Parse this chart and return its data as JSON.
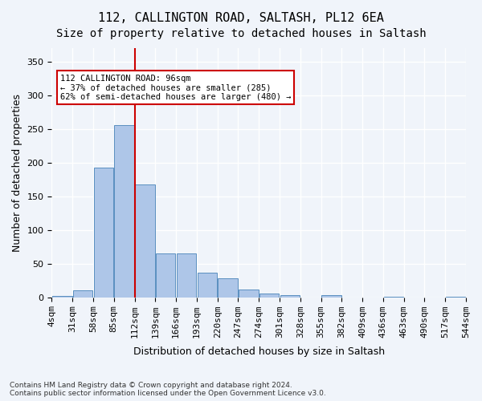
{
  "title1": "112, CALLINGTON ROAD, SALTASH, PL12 6EA",
  "title2": "Size of property relative to detached houses in Saltash",
  "xlabel": "Distribution of detached houses by size in Saltash",
  "ylabel": "Number of detached properties",
  "footnote": "Contains HM Land Registry data © Crown copyright and database right 2024.\nContains public sector information licensed under the Open Government Licence v3.0.",
  "tick_labels": [
    "4sqm",
    "31sqm",
    "58sqm",
    "85sqm",
    "112sqm",
    "139sqm",
    "166sqm",
    "193sqm",
    "220sqm",
    "247sqm",
    "274sqm",
    "301sqm",
    "328sqm",
    "355sqm",
    "382sqm",
    "409sqm",
    "436sqm",
    "463sqm",
    "490sqm",
    "517sqm",
    "544sqm"
  ],
  "bar_values": [
    2,
    10,
    192,
    256,
    167,
    65,
    65,
    36,
    28,
    12,
    6,
    3,
    0,
    3,
    0,
    0,
    1,
    0,
    0,
    1
  ],
  "bar_color": "#aec6e8",
  "bar_edge_color": "#5a8fc0",
  "vline_pos": 3.5,
  "vline_color": "#cc0000",
  "annotation_text": "112 CALLINGTON ROAD: 96sqm\n← 37% of detached houses are smaller (285)\n62% of semi-detached houses are larger (480) →",
  "annotation_box_color": "#ffffff",
  "annotation_box_edge": "#cc0000",
  "ylim": [
    0,
    370
  ],
  "yticks": [
    0,
    50,
    100,
    150,
    200,
    250,
    300,
    350
  ],
  "background_color": "#f0f4fa",
  "grid_color": "#ffffff",
  "title_fontsize": 11,
  "subtitle_fontsize": 10,
  "axis_label_fontsize": 9,
  "tick_fontsize": 8
}
